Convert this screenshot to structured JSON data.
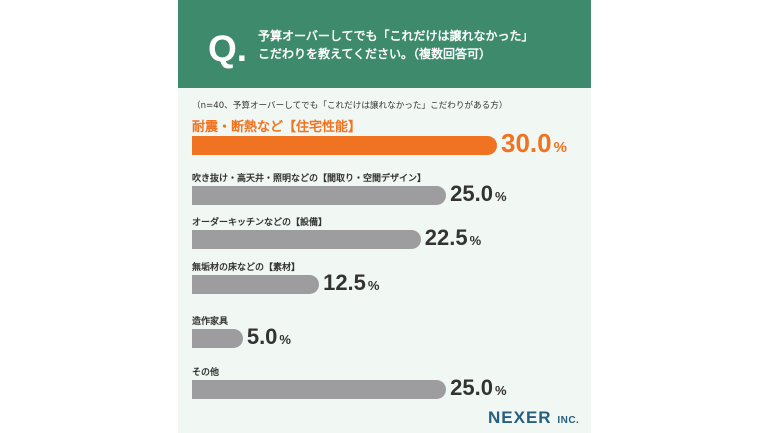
{
  "header": {
    "q_mark": "Q.",
    "question_line1": "予算オーバーしてでも「これだけは譲れなかった」",
    "question_line2": "こだわりを教えてください。（複数回答可）"
  },
  "note": "（n=40、予算オーバーしてでも「これだけは譲れなかった」こだわりがある方）",
  "logo": {
    "name": "NEXER",
    "suffix": "INC."
  },
  "colors": {
    "header_bg": "#3e8a6c",
    "highlight": "#ef7321",
    "bar": "#9d9d9f",
    "background": "#f1f7f3"
  },
  "chart_data": {
    "type": "bar",
    "orientation": "horizontal",
    "categories": [
      "耐震・断熱など【住宅性能】",
      "吹き抜け・高天井・照明などの【間取り・空間デザイン】",
      "オーダーキッチンなどの【設備】",
      "無垢材の床などの【素材】",
      "造作家具",
      "その他"
    ],
    "values": [
      30.0,
      25.0,
      22.5,
      12.5,
      5.0,
      25.0
    ],
    "value_labels": [
      "30.0",
      "25.0",
      "22.5",
      "12.5",
      "5.0",
      "25.0"
    ],
    "unit": "%",
    "highlight_index": 0,
    "xlim": [
      0,
      30
    ]
  }
}
